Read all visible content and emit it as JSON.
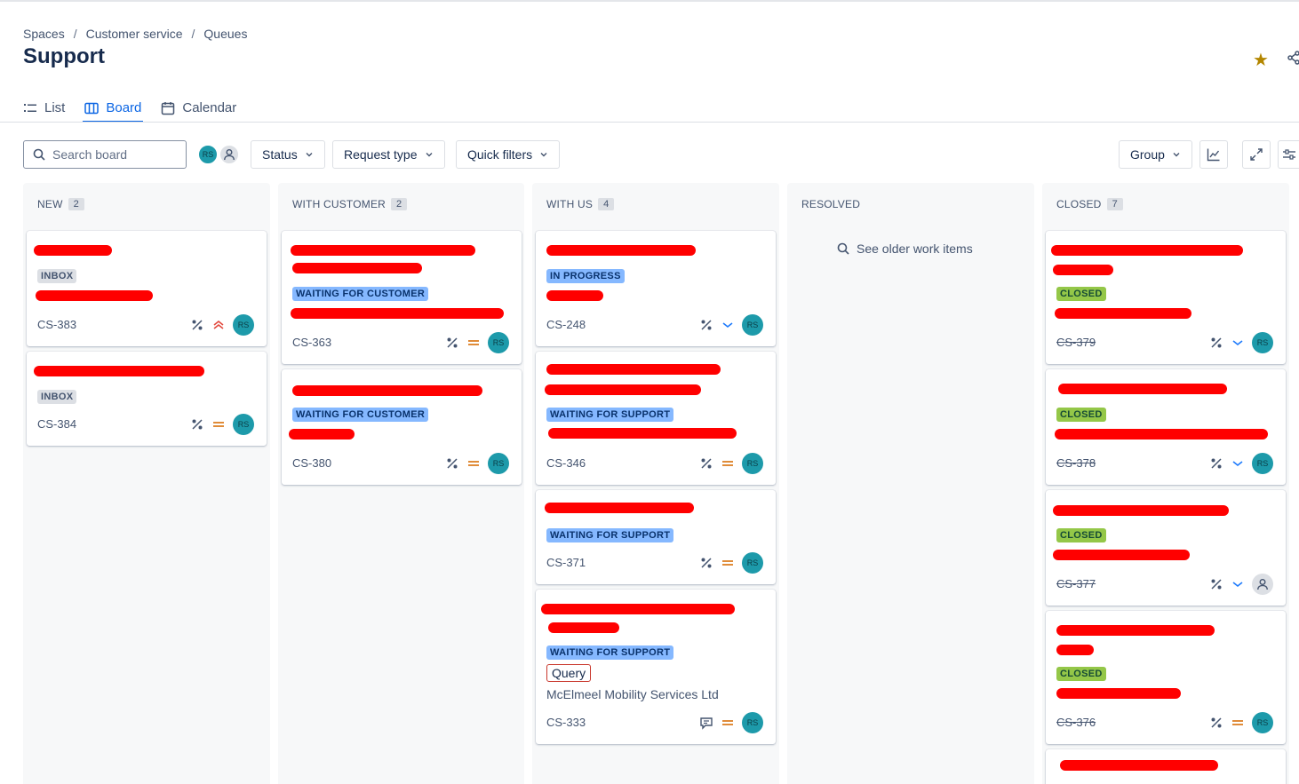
{
  "breadcrumb": [
    "Spaces",
    "Customer service",
    "Queues"
  ],
  "page_title": "Support",
  "tabs": [
    {
      "label": "List",
      "icon": "list-icon",
      "active": false
    },
    {
      "label": "Board",
      "icon": "board-icon",
      "active": true
    },
    {
      "label": "Calendar",
      "icon": "calendar-icon",
      "active": false
    }
  ],
  "toolbar": {
    "search_placeholder": "Search board",
    "avatar_initials": "RS",
    "status_label": "Status",
    "request_type_label": "Request type",
    "quick_filters_label": "Quick filters",
    "group_label": "Group"
  },
  "columns": [
    {
      "title": "NEW",
      "count": "2"
    },
    {
      "title": "WITH CUSTOMER",
      "count": "2"
    },
    {
      "title": "WITH US",
      "count": "4"
    },
    {
      "title": "RESOLVED",
      "count": ""
    },
    {
      "title": "CLOSED",
      "count": "7"
    }
  ],
  "resolved_link": "See older work items",
  "cards": {
    "new": [
      {
        "lozenge": "INBOX",
        "key": "CS-383",
        "priority": "highest",
        "assignee": "RS"
      },
      {
        "lozenge": "INBOX",
        "key": "CS-384",
        "priority": "medium",
        "assignee": "RS"
      }
    ],
    "with_customer": [
      {
        "lozenge": "WAITING FOR CUSTOMER",
        "key": "CS-363",
        "priority": "medium",
        "assignee": "RS"
      },
      {
        "lozenge": "WAITING FOR CUSTOMER",
        "key": "CS-380",
        "priority": "medium",
        "assignee": "RS"
      }
    ],
    "with_us": [
      {
        "lozenge": "IN PROGRESS",
        "key": "CS-248",
        "priority": "low",
        "assignee": "RS"
      },
      {
        "lozenge": "WAITING FOR SUPPORT",
        "key": "CS-346",
        "priority": "medium",
        "assignee": "RS"
      },
      {
        "lozenge": "WAITING FOR SUPPORT",
        "key": "CS-371",
        "priority": "medium",
        "assignee": "RS"
      },
      {
        "lozenge": "WAITING FOR SUPPORT",
        "key": "CS-333",
        "priority": "medium",
        "assignee": "RS",
        "request_type": "Query",
        "organization": "McElmeel Mobility Services Ltd"
      }
    ],
    "closed": [
      {
        "lozenge": "CLOSED",
        "key": "CS-379",
        "priority": "low",
        "assignee": "RS"
      },
      {
        "lozenge": "CLOSED",
        "key": "CS-378",
        "priority": "low",
        "assignee": "RS"
      },
      {
        "lozenge": "CLOSED",
        "key": "CS-377",
        "priority": "low",
        "assignee": "unassigned"
      },
      {
        "lozenge": "CLOSED",
        "key": "CS-376",
        "priority": "medium",
        "assignee": "RS"
      }
    ]
  },
  "colors": {
    "accent": "#0c66e4",
    "redaction": "#ff0000",
    "avatar": "#1d9aaa",
    "star": "#b38600"
  }
}
